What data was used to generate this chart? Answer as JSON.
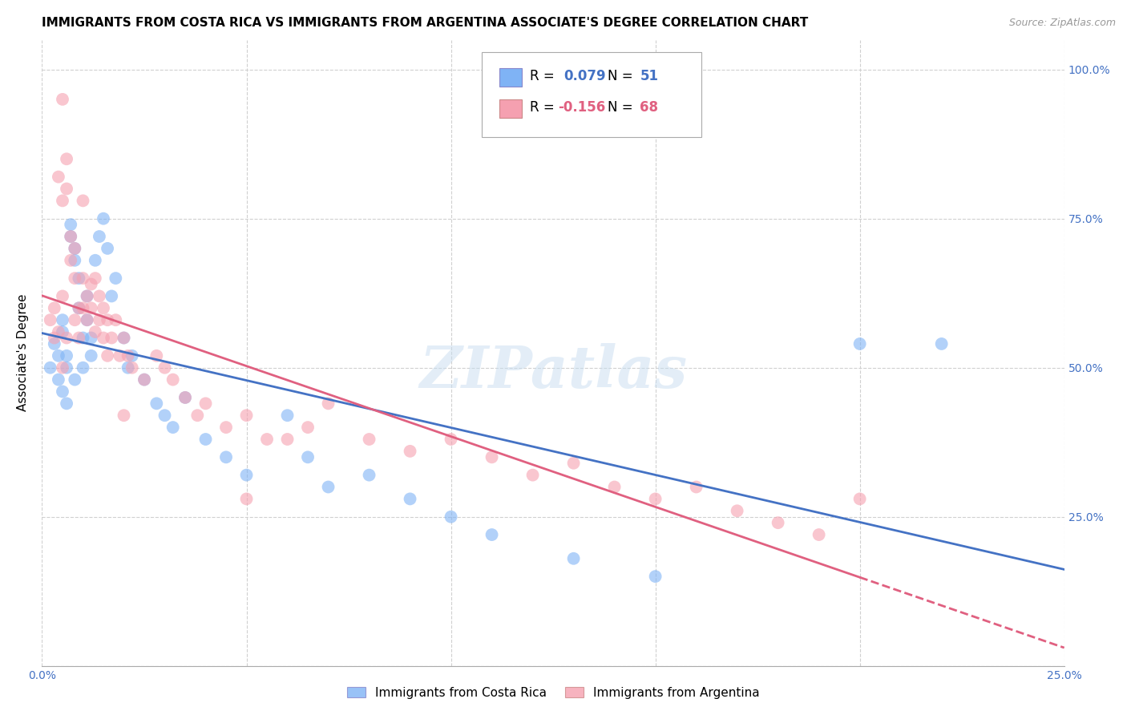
{
  "title": "IMMIGRANTS FROM COSTA RICA VS IMMIGRANTS FROM ARGENTINA ASSOCIATE'S DEGREE CORRELATION CHART",
  "source": "Source: ZipAtlas.com",
  "ylabel": "Associate's Degree",
  "costa_rica_color": "#7fb3f5",
  "argentina_color": "#f5a0b0",
  "costa_rica_line_color": "#4472c4",
  "argentina_line_color": "#e06080",
  "watermark": "ZIPatlas",
  "R_cr": 0.079,
  "N_cr": 51,
  "R_ar": -0.156,
  "N_ar": 68,
  "xmin": 0.0,
  "xmax": 0.25,
  "ymin": 0.0,
  "ymax": 1.05,
  "yticks": [
    0.0,
    0.25,
    0.5,
    0.75,
    1.0
  ],
  "ytick_labels": [
    "",
    "25.0%",
    "50.0%",
    "75.0%",
    "100.0%"
  ],
  "xticks": [
    0.0,
    0.05,
    0.1,
    0.15,
    0.2,
    0.25
  ],
  "xtick_labels": [
    "0.0%",
    "",
    "",
    "",
    "",
    "25.0%"
  ],
  "title_fontsize": 11,
  "axis_label_fontsize": 11,
  "tick_fontsize": 10,
  "legend_fontsize": 12,
  "costa_rica_x": [
    0.002,
    0.003,
    0.004,
    0.004,
    0.005,
    0.005,
    0.005,
    0.006,
    0.006,
    0.006,
    0.007,
    0.007,
    0.008,
    0.008,
    0.008,
    0.009,
    0.009,
    0.01,
    0.01,
    0.011,
    0.011,
    0.012,
    0.012,
    0.013,
    0.014,
    0.015,
    0.016,
    0.017,
    0.018,
    0.02,
    0.021,
    0.022,
    0.025,
    0.028,
    0.03,
    0.032,
    0.035,
    0.04,
    0.045,
    0.05,
    0.06,
    0.065,
    0.07,
    0.08,
    0.09,
    0.1,
    0.11,
    0.13,
    0.15,
    0.2,
    0.22
  ],
  "costa_rica_y": [
    0.5,
    0.54,
    0.48,
    0.52,
    0.56,
    0.46,
    0.58,
    0.5,
    0.52,
    0.44,
    0.72,
    0.74,
    0.68,
    0.7,
    0.48,
    0.65,
    0.6,
    0.55,
    0.5,
    0.62,
    0.58,
    0.55,
    0.52,
    0.68,
    0.72,
    0.75,
    0.7,
    0.62,
    0.65,
    0.55,
    0.5,
    0.52,
    0.48,
    0.44,
    0.42,
    0.4,
    0.45,
    0.38,
    0.35,
    0.32,
    0.42,
    0.35,
    0.3,
    0.32,
    0.28,
    0.25,
    0.22,
    0.18,
    0.15,
    0.54,
    0.54
  ],
  "argentina_x": [
    0.002,
    0.003,
    0.003,
    0.004,
    0.004,
    0.005,
    0.005,
    0.005,
    0.006,
    0.006,
    0.006,
    0.007,
    0.007,
    0.008,
    0.008,
    0.008,
    0.009,
    0.009,
    0.01,
    0.01,
    0.011,
    0.011,
    0.012,
    0.012,
    0.013,
    0.013,
    0.014,
    0.014,
    0.015,
    0.015,
    0.016,
    0.016,
    0.017,
    0.018,
    0.019,
    0.02,
    0.021,
    0.022,
    0.025,
    0.028,
    0.03,
    0.032,
    0.035,
    0.038,
    0.04,
    0.045,
    0.05,
    0.055,
    0.06,
    0.065,
    0.07,
    0.08,
    0.09,
    0.1,
    0.11,
    0.12,
    0.13,
    0.14,
    0.15,
    0.16,
    0.17,
    0.18,
    0.19,
    0.2,
    0.005,
    0.01,
    0.02,
    0.05
  ],
  "argentina_y": [
    0.58,
    0.55,
    0.6,
    0.82,
    0.56,
    0.78,
    0.62,
    0.5,
    0.85,
    0.8,
    0.55,
    0.72,
    0.68,
    0.65,
    0.7,
    0.58,
    0.6,
    0.55,
    0.65,
    0.6,
    0.62,
    0.58,
    0.64,
    0.6,
    0.65,
    0.56,
    0.62,
    0.58,
    0.6,
    0.55,
    0.58,
    0.52,
    0.55,
    0.58,
    0.52,
    0.55,
    0.52,
    0.5,
    0.48,
    0.52,
    0.5,
    0.48,
    0.45,
    0.42,
    0.44,
    0.4,
    0.42,
    0.38,
    0.38,
    0.4,
    0.44,
    0.38,
    0.36,
    0.38,
    0.35,
    0.32,
    0.34,
    0.3,
    0.28,
    0.3,
    0.26,
    0.24,
    0.22,
    0.28,
    0.95,
    0.78,
    0.42,
    0.28
  ]
}
